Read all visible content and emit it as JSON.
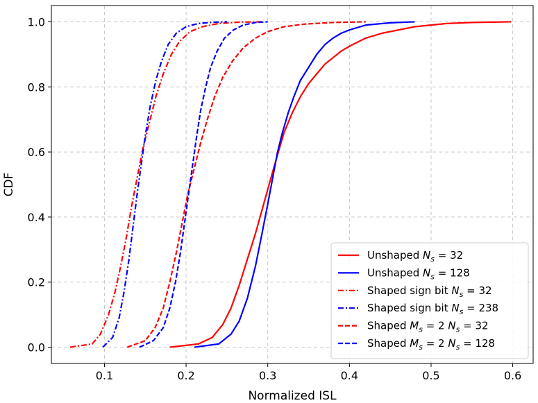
{
  "chart_data": {
    "type": "line",
    "title": "",
    "xlabel": "Normalized ISL",
    "ylabel": "CDF",
    "xlim": [
      0.035,
      0.625
    ],
    "ylim": [
      -0.05,
      1.05
    ],
    "xticks": [
      0.1,
      0.2,
      0.3,
      0.4,
      0.5,
      0.6
    ],
    "xtick_labels": [
      "0.1",
      "0.2",
      "0.3",
      "0.4",
      "0.5",
      "0.6"
    ],
    "yticks": [
      0.0,
      0.2,
      0.4,
      0.6,
      0.8,
      1.0
    ],
    "ytick_labels": [
      "0.0",
      "0.2",
      "0.4",
      "0.6",
      "0.8",
      "1.0"
    ],
    "grid": true,
    "legend_position": "lower-right",
    "series": [
      {
        "name": "Unshaped N_s = 32",
        "legend_prefix": "Unshaped ",
        "legend_math": "N",
        "legend_sub": "s",
        "legend_suffix": " = 32",
        "color": "#ff0000",
        "dash": "solid",
        "x": [
          0.18,
          0.215,
          0.232,
          0.245,
          0.255,
          0.265,
          0.275,
          0.285,
          0.295,
          0.305,
          0.313,
          0.32,
          0.33,
          0.34,
          0.35,
          0.36,
          0.37,
          0.38,
          0.39,
          0.4,
          0.42,
          0.44,
          0.46,
          0.48,
          0.5,
          0.52,
          0.55,
          0.598
        ],
        "y": [
          0.0,
          0.01,
          0.03,
          0.07,
          0.12,
          0.19,
          0.27,
          0.35,
          0.44,
          0.53,
          0.6,
          0.66,
          0.72,
          0.77,
          0.81,
          0.84,
          0.87,
          0.89,
          0.91,
          0.925,
          0.95,
          0.965,
          0.975,
          0.985,
          0.99,
          0.995,
          0.998,
          1.0
        ]
      },
      {
        "name": "Unshaped N_s = 128",
        "legend_prefix": "Unshaped ",
        "legend_math": "N",
        "legend_sub": "s",
        "legend_suffix": " = 128",
        "color": "#0000ff",
        "dash": "solid",
        "x": [
          0.21,
          0.24,
          0.255,
          0.265,
          0.275,
          0.285,
          0.293,
          0.3,
          0.306,
          0.312,
          0.318,
          0.325,
          0.332,
          0.34,
          0.35,
          0.36,
          0.37,
          0.38,
          0.39,
          0.4,
          0.42,
          0.45,
          0.48
        ],
        "y": [
          0.0,
          0.01,
          0.04,
          0.08,
          0.15,
          0.25,
          0.35,
          0.44,
          0.52,
          0.6,
          0.66,
          0.72,
          0.77,
          0.82,
          0.86,
          0.9,
          0.93,
          0.95,
          0.965,
          0.975,
          0.99,
          0.997,
          1.0
        ]
      },
      {
        "name": "Shaped sign bit N_s = 32",
        "legend_prefix": "Shaped sign bit ",
        "legend_math": "N",
        "legend_sub": "s",
        "legend_suffix": " = 32",
        "color": "#ff0000",
        "dash": "dashdot",
        "x": [
          0.058,
          0.085,
          0.095,
          0.105,
          0.113,
          0.12,
          0.127,
          0.133,
          0.14,
          0.147,
          0.155,
          0.163,
          0.172,
          0.182,
          0.192,
          0.205,
          0.22,
          0.24,
          0.265,
          0.295
        ],
        "y": [
          0.0,
          0.01,
          0.04,
          0.1,
          0.17,
          0.25,
          0.34,
          0.43,
          0.52,
          0.61,
          0.69,
          0.77,
          0.84,
          0.9,
          0.94,
          0.97,
          0.985,
          0.995,
          0.999,
          1.0
        ]
      },
      {
        "name": "Shaped sign bit N_s = 238",
        "legend_prefix": "Shaped sign bit ",
        "legend_math": "N",
        "legend_sub": "s",
        "legend_suffix": " = 238",
        "color": "#0000ff",
        "dash": "dashdot",
        "x": [
          0.098,
          0.11,
          0.118,
          0.124,
          0.13,
          0.135,
          0.14,
          0.145,
          0.15,
          0.156,
          0.163,
          0.17,
          0.178,
          0.188,
          0.2,
          0.215,
          0.235,
          0.25
        ],
        "y": [
          0.0,
          0.03,
          0.09,
          0.17,
          0.27,
          0.37,
          0.47,
          0.56,
          0.65,
          0.74,
          0.82,
          0.88,
          0.93,
          0.965,
          0.985,
          0.995,
          0.999,
          1.0
        ]
      },
      {
        "name": "Shaped M_s = 2 N_s = 32",
        "legend_prefix": "Shaped ",
        "legend_math": "M",
        "legend_sub": "s",
        "legend_suffix": " = 2 ",
        "legend_math2": "N",
        "legend_sub2": "s",
        "legend_suffix2": " = 32",
        "color": "#ff0000",
        "dash": "dashed",
        "x": [
          0.128,
          0.15,
          0.162,
          0.172,
          0.18,
          0.188,
          0.195,
          0.202,
          0.21,
          0.218,
          0.226,
          0.235,
          0.245,
          0.257,
          0.27,
          0.285,
          0.3,
          0.32,
          0.345,
          0.38,
          0.42
        ],
        "y": [
          0.0,
          0.02,
          0.06,
          0.12,
          0.2,
          0.29,
          0.38,
          0.47,
          0.55,
          0.63,
          0.7,
          0.77,
          0.83,
          0.88,
          0.92,
          0.95,
          0.97,
          0.985,
          0.993,
          0.998,
          1.0
        ]
      },
      {
        "name": "Shaped M_s = 2 N_s = 128",
        "legend_prefix": "Shaped ",
        "legend_math": "M",
        "legend_sub": "s",
        "legend_suffix": " = 2 ",
        "legend_math2": "N",
        "legend_sub2": "s",
        "legend_suffix2": " = 128",
        "color": "#0000ff",
        "dash": "dashed",
        "x": [
          0.143,
          0.16,
          0.172,
          0.18,
          0.187,
          0.193,
          0.198,
          0.203,
          0.208,
          0.213,
          0.218,
          0.224,
          0.23,
          0.238,
          0.247,
          0.258,
          0.27,
          0.285,
          0.3
        ],
        "y": [
          0.0,
          0.02,
          0.06,
          0.12,
          0.2,
          0.29,
          0.38,
          0.47,
          0.56,
          0.65,
          0.73,
          0.8,
          0.86,
          0.91,
          0.95,
          0.975,
          0.99,
          0.998,
          1.0
        ]
      }
    ]
  }
}
